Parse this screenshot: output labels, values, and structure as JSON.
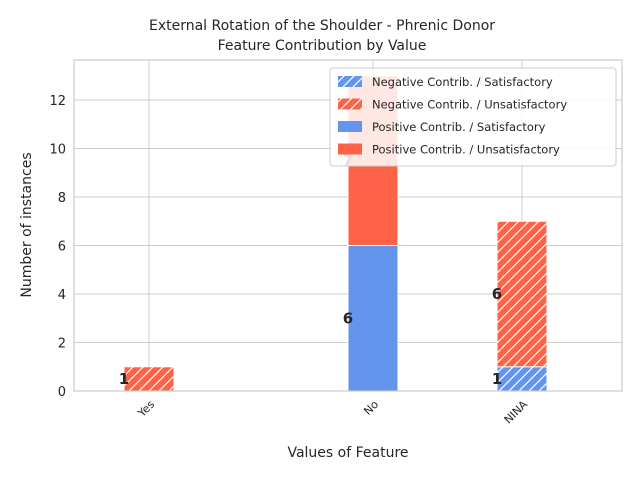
{
  "chart_data": {
    "type": "bar",
    "stacked": true,
    "title": "External Rotation of the Shoulder - Phrenic Donor",
    "subtitle": "Feature Contribution by Value",
    "xlabel": "Values of Feature",
    "ylabel": "Number of instances",
    "categories": [
      "Yes",
      "No",
      "NINA"
    ],
    "ylim": [
      0,
      13.65
    ],
    "yticks": [
      0,
      2,
      4,
      6,
      8,
      10,
      12
    ],
    "grid": true,
    "legend_position": "top-right",
    "series": [
      {
        "name": "Negative Contrib. / Satisfactory",
        "color": "#6495ed",
        "hatch": true,
        "values": [
          0,
          0,
          1
        ]
      },
      {
        "name": "Negative Contrib. / Unsatisfactory",
        "color": "#ff6347",
        "hatch": true,
        "values": [
          1,
          0,
          6
        ]
      },
      {
        "name": "Positive Contrib. / Satisfactory",
        "color": "#6495ed",
        "hatch": false,
        "values": [
          0,
          6,
          0
        ]
      },
      {
        "name": "Positive Contrib. / Unsatisfactory",
        "color": "#ff6347",
        "hatch": false,
        "values": [
          0,
          7,
          0
        ]
      }
    ]
  }
}
